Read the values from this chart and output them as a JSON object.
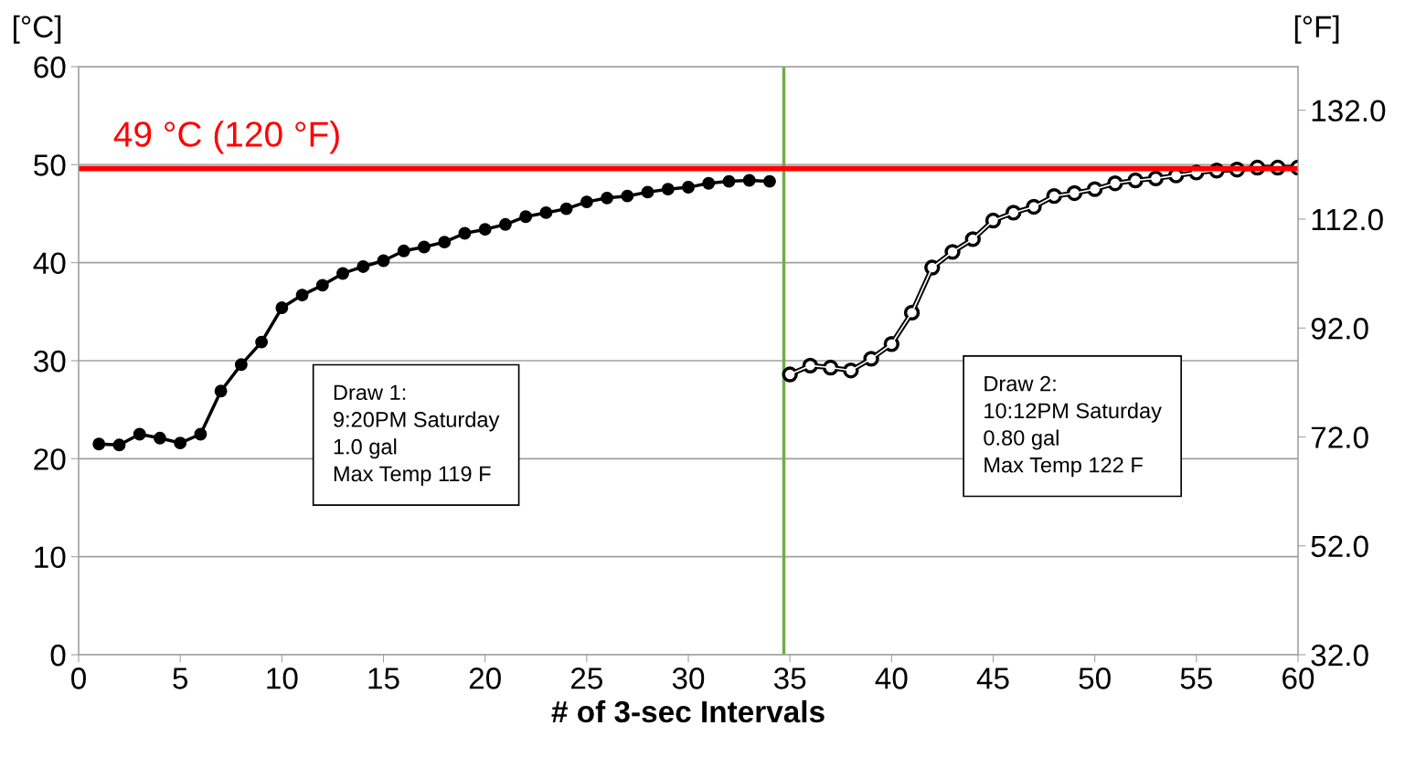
{
  "chart_data": {
    "type": "line",
    "xlabel": "# of 3-sec Intervals",
    "ylabel": "[°C]",
    "y2label": "[°F]",
    "xlim": [
      0,
      60
    ],
    "xticks": [
      0,
      5,
      10,
      15,
      20,
      25,
      30,
      35,
      40,
      45,
      50,
      55,
      60
    ],
    "ylim": [
      0,
      60
    ],
    "yticks": [
      0,
      10,
      20,
      30,
      40,
      50,
      60
    ],
    "y2lim": [
      32,
      140
    ],
    "y2ticks": [
      {
        "value": 32,
        "label": "32.0"
      },
      {
        "value": 52,
        "label": "52.0"
      },
      {
        "value": 72,
        "label": "72.0"
      },
      {
        "value": 92,
        "label": "92.0"
      },
      {
        "value": 112,
        "label": "112.0"
      },
      {
        "value": 132,
        "label": "132.0"
      }
    ],
    "grid": "y",
    "marker": "circle",
    "line_style": "solid",
    "series": [
      {
        "color": "#000000",
        "x": [
          1,
          2,
          3,
          4,
          5,
          6,
          7,
          8,
          9,
          10,
          11,
          12,
          13,
          14,
          15,
          16,
          17,
          18,
          19,
          20,
          21,
          22,
          23,
          24,
          25,
          26,
          27,
          28,
          29,
          30,
          31,
          32,
          33,
          34
        ],
        "values": [
          21.5,
          21.4,
          22.5,
          22.1,
          21.6,
          22.5,
          26.9,
          29.6,
          31.9,
          35.4,
          36.7,
          37.7,
          38.9,
          39.6,
          40.2,
          41.2,
          41.6,
          42.1,
          43.0,
          43.4,
          43.9,
          44.7,
          45.1,
          45.5,
          46.2,
          46.6,
          46.8,
          47.2,
          47.5,
          47.7,
          48.1,
          48.3,
          48.4,
          48.3
        ]
      },
      {
        "color": "#000000",
        "x": [
          35,
          36,
          37,
          38,
          39,
          40,
          41,
          42,
          43,
          44,
          45,
          46,
          47,
          48,
          49,
          50,
          51,
          52,
          53,
          54,
          55,
          56,
          57,
          58,
          59,
          60
        ],
        "values": [
          28.6,
          29.5,
          29.3,
          29.0,
          30.2,
          31.7,
          34.9,
          39.5,
          41.1,
          42.4,
          44.3,
          45.1,
          45.7,
          46.8,
          47.1,
          47.5,
          48.1,
          48.4,
          48.6,
          48.9,
          49.2,
          49.4,
          49.5,
          49.7,
          49.7,
          49.7
        ]
      }
    ],
    "ref_lines": [
      {
        "axis": "y",
        "value": 49.6,
        "label": "49 °C (120 °F)",
        "color": "#ff0000"
      },
      {
        "axis": "x",
        "value": 34.7,
        "color": "#70ad47"
      }
    ],
    "annotations": [
      "Draw 1:\n9:20PM Saturday\n1.0 gal\nMax Temp 119 F",
      "Draw 2:\n10:12PM Saturday\n0.80 gal\nMax Temp 122 F"
    ]
  }
}
